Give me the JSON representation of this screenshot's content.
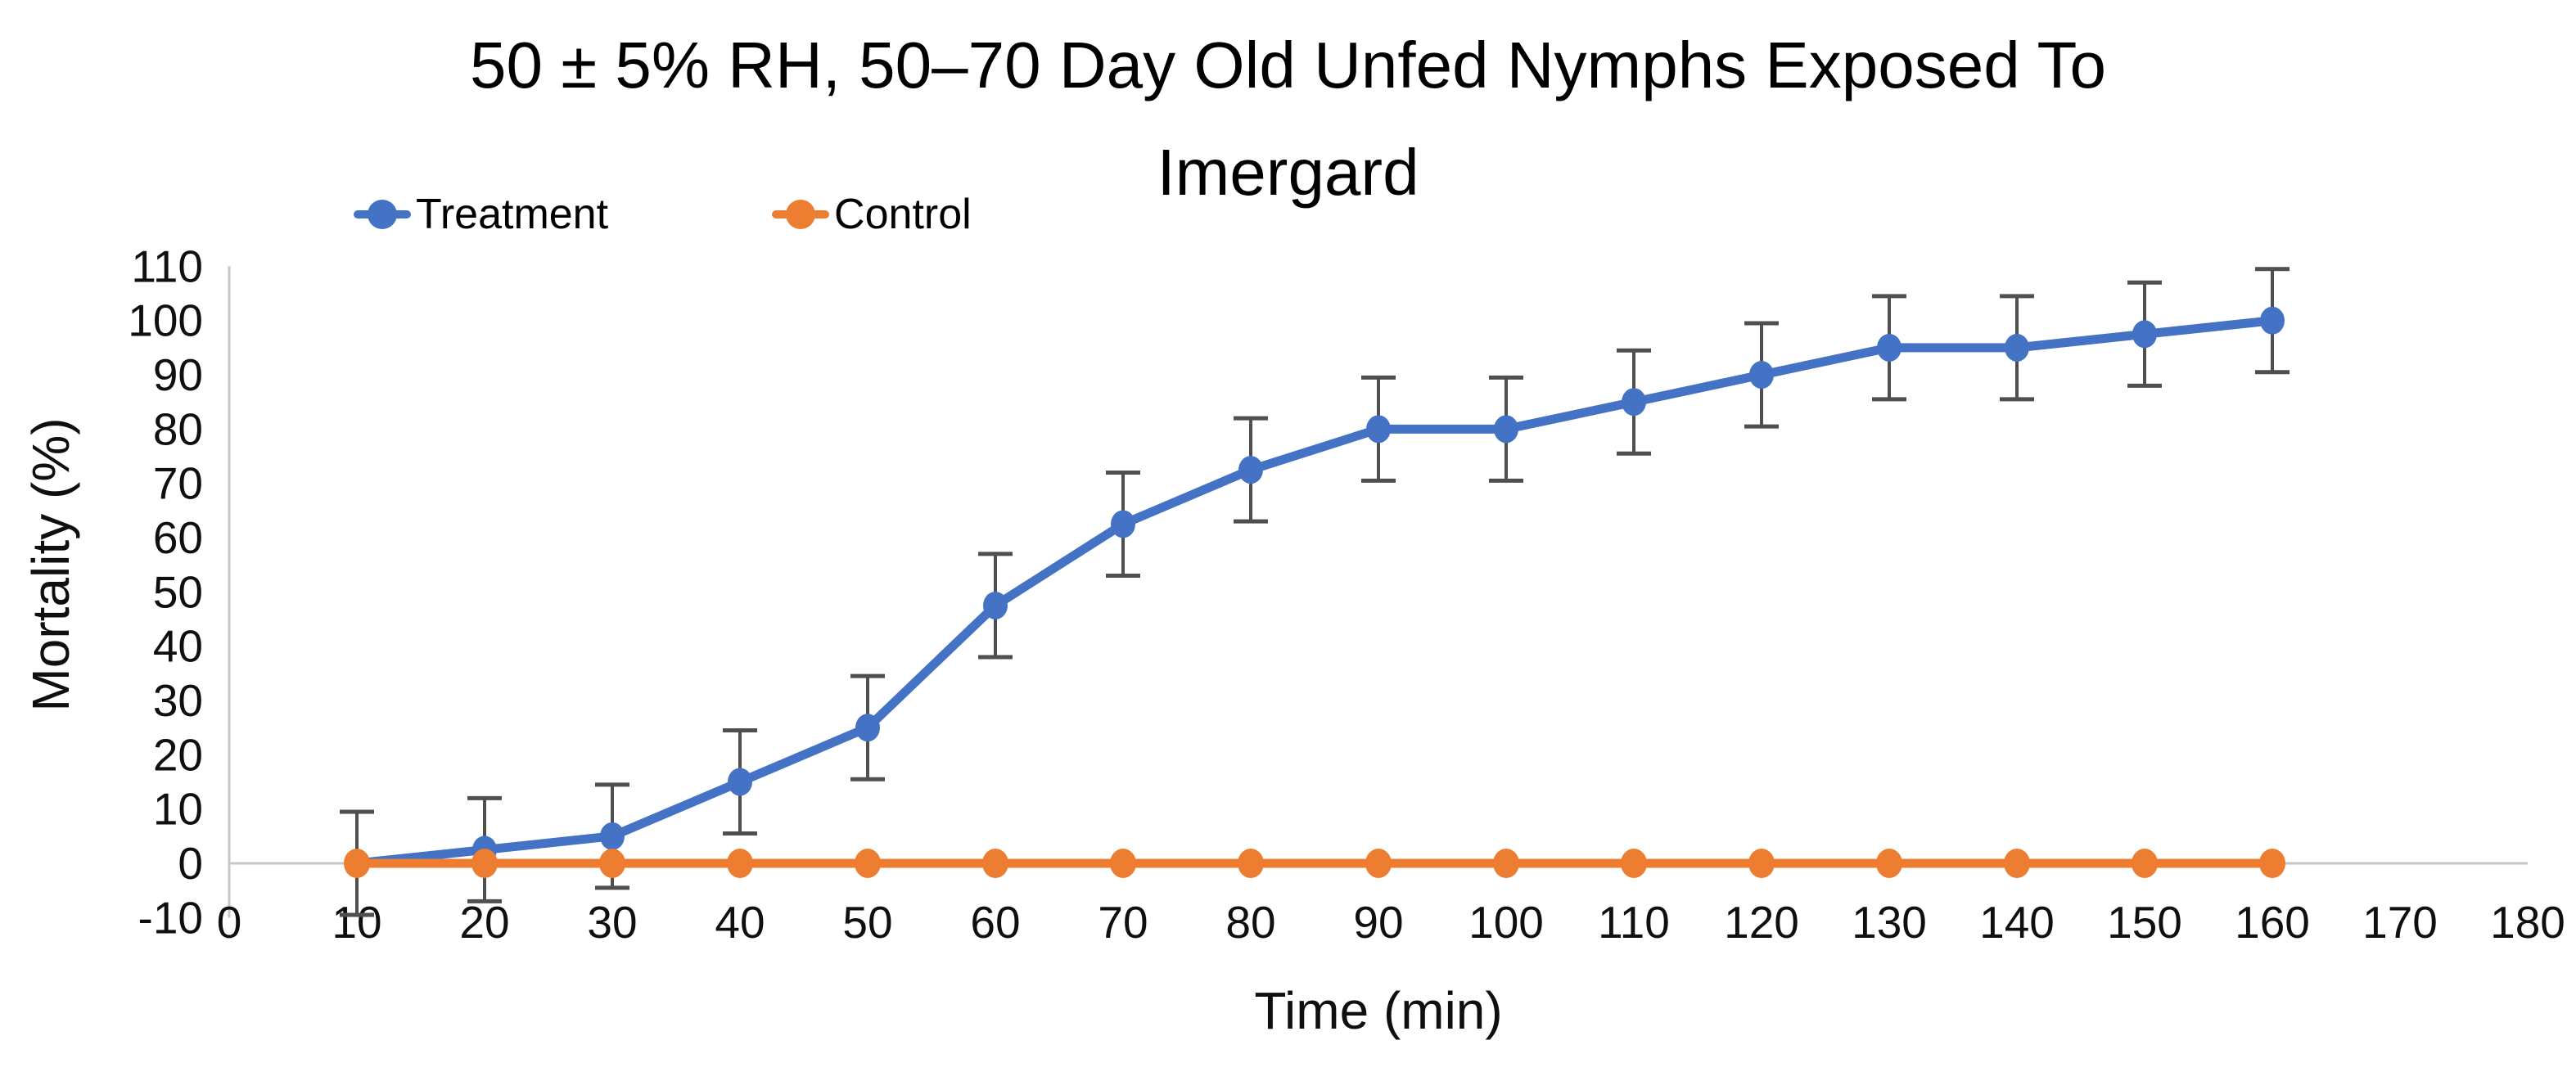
{
  "title_lines": [
    "50 ± 5% RH, 50–70 Day Old Unfed Nymphs Exposed To",
    "Imergard"
  ],
  "chart_data": {
    "type": "line",
    "title": "50 ± 5% RH, 50–70 Day Old Unfed Nymphs Exposed To Imergard",
    "xlabel": "Time (min)",
    "ylabel": "Mortality (%)",
    "x": [
      10,
      20,
      30,
      40,
      50,
      60,
      70,
      80,
      90,
      100,
      110,
      120,
      130,
      140,
      150,
      160
    ],
    "series": [
      {
        "name": "Treatment",
        "color": "#4472C4",
        "values": [
          0,
          2.5,
          5,
          15,
          25,
          47.5,
          62.5,
          72.5,
          80,
          80,
          85,
          90,
          95,
          95,
          97.5,
          100
        ],
        "error": 9.5
      },
      {
        "name": "Control",
        "color": "#ED7D31",
        "values": [
          0,
          0,
          0,
          0,
          0,
          0,
          0,
          0,
          0,
          0,
          0,
          0,
          0,
          0,
          0,
          0
        ],
        "error": 0
      }
    ],
    "xlim": [
      0,
      180
    ],
    "ylim": [
      -10,
      110
    ],
    "x_ticks": [
      0,
      10,
      20,
      30,
      40,
      50,
      60,
      70,
      80,
      90,
      100,
      110,
      120,
      130,
      140,
      150,
      160,
      170,
      180
    ],
    "y_ticks": [
      110,
      100,
      90,
      80,
      70,
      60,
      50,
      40,
      30,
      20,
      10,
      0,
      -10
    ],
    "grid": false,
    "legend_position": "top-left",
    "error_bar_color": "#4f4f4f",
    "axis_line_color": "#C7C7C7",
    "tick_label_color": "#0f0f0f"
  }
}
